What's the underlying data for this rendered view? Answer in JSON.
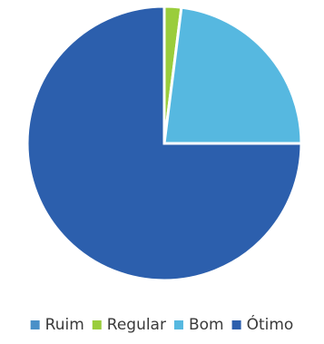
{
  "chart_data": {
    "type": "pie",
    "title": "",
    "categories": [
      "Ruim",
      "Regular",
      "Bom",
      "Ótimo"
    ],
    "values": [
      0,
      2,
      23,
      75
    ],
    "colors": [
      "#4A90C8",
      "#9ACD3C",
      "#56B8E0",
      "#2C5FAD"
    ],
    "start_angle_deg": 0,
    "direction": "clockwise",
    "legend": {
      "position": "bottom",
      "entries": [
        "Ruim",
        "Regular",
        "Bom",
        "Ótimo"
      ]
    }
  }
}
